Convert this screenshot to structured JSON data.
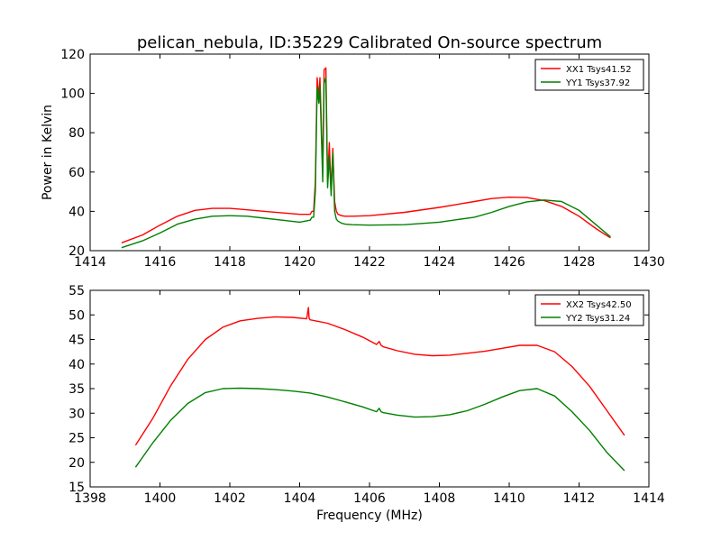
{
  "figure": {
    "title": "pelican_nebula, ID:35229 Calibrated On-source spectrum"
  },
  "colors": {
    "red": "#ff0000",
    "green": "#008000"
  },
  "chart_data": [
    {
      "type": "line",
      "title": "pelican_nebula, ID:35229 Calibrated On-source spectrum",
      "xlabel": "",
      "ylabel": "Power in Kelvin",
      "xlim": [
        1414,
        1430
      ],
      "ylim": [
        20,
        120
      ],
      "xticks": [
        1414,
        1416,
        1418,
        1420,
        1422,
        1424,
        1426,
        1428,
        1430
      ],
      "yticks": [
        20,
        40,
        60,
        80,
        100,
        120
      ],
      "grid": false,
      "legend": "top-right",
      "series": [
        {
          "name": "XX1 Tsys41.52",
          "color": "#ff0000",
          "x": [
            1414.9,
            1415.5,
            1416.0,
            1416.5,
            1417.0,
            1417.5,
            1418.0,
            1418.5,
            1419.0,
            1419.5,
            1420.0,
            1420.3,
            1420.35,
            1420.4,
            1420.45,
            1420.5,
            1420.55,
            1420.58,
            1420.62,
            1420.66,
            1420.7,
            1420.75,
            1420.8,
            1420.85,
            1420.9,
            1420.95,
            1421.0,
            1421.05,
            1421.1,
            1421.2,
            1421.3,
            1421.5,
            1422.0,
            1423.0,
            1424.0,
            1425.0,
            1425.5,
            1426.0,
            1426.5,
            1427.0,
            1427.5,
            1428.0,
            1428.5,
            1428.9
          ],
          "y": [
            24,
            28,
            33,
            37.5,
            40.5,
            41.5,
            41.5,
            40.8,
            40.0,
            39.2,
            38.5,
            38.5,
            40,
            40,
            55,
            108,
            98,
            108,
            85,
            60,
            112,
            113,
            55,
            75,
            50,
            72,
            45,
            40,
            38.5,
            37.8,
            37.5,
            37.5,
            37.8,
            39.5,
            42,
            45,
            46.5,
            47.2,
            47.0,
            45.5,
            42.5,
            37.5,
            31,
            26.5
          ]
        },
        {
          "name": "YY1 Tsys37.92",
          "color": "#008000",
          "x": [
            1414.9,
            1415.5,
            1416.0,
            1416.5,
            1417.0,
            1417.5,
            1418.0,
            1418.5,
            1419.0,
            1419.5,
            1420.0,
            1420.3,
            1420.35,
            1420.4,
            1420.45,
            1420.5,
            1420.55,
            1420.58,
            1420.62,
            1420.66,
            1420.7,
            1420.75,
            1420.8,
            1420.85,
            1420.9,
            1420.95,
            1421.0,
            1421.05,
            1421.1,
            1421.2,
            1421.3,
            1421.5,
            1422.0,
            1423.0,
            1424.0,
            1425.0,
            1425.5,
            1426.0,
            1426.5,
            1427.0,
            1427.5,
            1428.0,
            1428.5,
            1428.9
          ],
          "y": [
            21.5,
            25,
            29,
            33.5,
            36,
            37.5,
            37.8,
            37.5,
            36.5,
            35.5,
            34.5,
            35.5,
            37,
            37,
            50,
            103,
            95,
            104,
            80,
            55,
            105,
            108,
            52,
            68,
            48,
            70,
            40,
            36,
            35,
            34,
            33.5,
            33.2,
            33,
            33.2,
            34.5,
            37,
            39.5,
            42.5,
            44.8,
            45.8,
            45,
            40.5,
            33,
            27
          ]
        }
      ]
    },
    {
      "type": "line",
      "title": "",
      "xlabel": "Frequency (MHz)",
      "ylabel": "",
      "xlim": [
        1398,
        1414
      ],
      "ylim": [
        15,
        55
      ],
      "xticks": [
        1398,
        1400,
        1402,
        1404,
        1406,
        1408,
        1410,
        1412,
        1414
      ],
      "yticks": [
        15,
        20,
        25,
        30,
        35,
        40,
        45,
        50,
        55
      ],
      "grid": false,
      "legend": "top-right",
      "series": [
        {
          "name": "XX2 Tsys42.50",
          "color": "#ff0000",
          "x": [
            1399.3,
            1399.8,
            1400.3,
            1400.8,
            1401.3,
            1401.8,
            1402.3,
            1402.8,
            1403.3,
            1403.8,
            1404.2,
            1404.25,
            1404.27,
            1404.3,
            1404.8,
            1405.3,
            1405.8,
            1406.2,
            1406.28,
            1406.33,
            1406.4,
            1406.8,
            1407.3,
            1407.8,
            1408.3,
            1408.8,
            1409.3,
            1409.8,
            1410.3,
            1410.8,
            1411.3,
            1411.8,
            1412.3,
            1412.8,
            1413.3
          ],
          "y": [
            23.5,
            29,
            35.5,
            41,
            45,
            47.5,
            48.8,
            49.3,
            49.6,
            49.5,
            49.2,
            51.5,
            49.3,
            49.0,
            48.3,
            47.0,
            45.5,
            44.0,
            44.6,
            43.8,
            43.5,
            42.7,
            42.0,
            41.7,
            41.8,
            42.2,
            42.6,
            43.2,
            43.8,
            43.8,
            42.5,
            39.5,
            35.5,
            30.5,
            25.5
          ]
        },
        {
          "name": "YY2 Tsys31.24",
          "color": "#008000",
          "x": [
            1399.3,
            1399.8,
            1400.3,
            1400.8,
            1401.3,
            1401.8,
            1402.3,
            1402.8,
            1403.3,
            1403.8,
            1404.3,
            1404.8,
            1405.3,
            1405.8,
            1406.2,
            1406.28,
            1406.33,
            1406.4,
            1406.8,
            1407.3,
            1407.8,
            1408.3,
            1408.8,
            1409.3,
            1409.8,
            1410.3,
            1410.8,
            1411.3,
            1411.8,
            1412.3,
            1412.8,
            1413.3
          ],
          "y": [
            19,
            24,
            28.5,
            32,
            34.2,
            35.0,
            35.1,
            35.0,
            34.8,
            34.5,
            34.1,
            33.3,
            32.3,
            31.3,
            30.3,
            31.0,
            30.3,
            30.1,
            29.6,
            29.2,
            29.3,
            29.7,
            30.5,
            31.8,
            33.3,
            34.6,
            35.0,
            33.5,
            30.3,
            26.5,
            22.0,
            18.3
          ]
        }
      ]
    }
  ]
}
